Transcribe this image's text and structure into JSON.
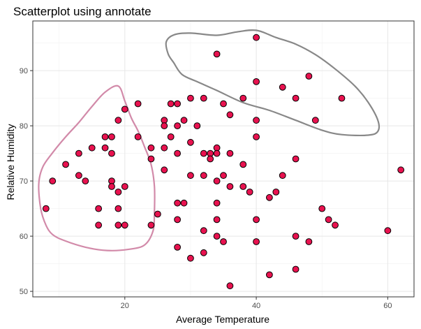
{
  "chart_data": {
    "type": "scatter",
    "title": "Scatterplot using annotate",
    "xlabel": "Average Temperature",
    "ylabel": "Relative Humidity",
    "xlim": [
      6,
      64
    ],
    "ylim": [
      49,
      99
    ],
    "xticks": [
      20,
      40,
      60
    ],
    "yticks": [
      50,
      60,
      70,
      80,
      90
    ],
    "xtick_labels": [
      "20",
      "40",
      "60"
    ],
    "ytick_labels": [
      "50",
      "60",
      "70",
      "80",
      "90"
    ],
    "grid": true,
    "point_fill": "#e8124f",
    "point_edge": "#000000",
    "points": [
      {
        "x": 8,
        "y": 65
      },
      {
        "x": 9,
        "y": 70
      },
      {
        "x": 11,
        "y": 73
      },
      {
        "x": 13,
        "y": 75
      },
      {
        "x": 13,
        "y": 71
      },
      {
        "x": 14,
        "y": 70
      },
      {
        "x": 15,
        "y": 76
      },
      {
        "x": 16,
        "y": 65
      },
      {
        "x": 16,
        "y": 62
      },
      {
        "x": 17,
        "y": 78
      },
      {
        "x": 17,
        "y": 76
      },
      {
        "x": 18,
        "y": 78
      },
      {
        "x": 18,
        "y": 75
      },
      {
        "x": 18,
        "y": 70
      },
      {
        "x": 18,
        "y": 69
      },
      {
        "x": 19,
        "y": 81
      },
      {
        "x": 19,
        "y": 68
      },
      {
        "x": 19,
        "y": 65
      },
      {
        "x": 19,
        "y": 62
      },
      {
        "x": 20,
        "y": 83
      },
      {
        "x": 20,
        "y": 69
      },
      {
        "x": 20,
        "y": 62
      },
      {
        "x": 22,
        "y": 84
      },
      {
        "x": 22,
        "y": 78
      },
      {
        "x": 24,
        "y": 76
      },
      {
        "x": 24,
        "y": 74
      },
      {
        "x": 24,
        "y": 62
      },
      {
        "x": 25,
        "y": 64
      },
      {
        "x": 26,
        "y": 81
      },
      {
        "x": 26,
        "y": 80
      },
      {
        "x": 26,
        "y": 76
      },
      {
        "x": 26,
        "y": 72
      },
      {
        "x": 27,
        "y": 84
      },
      {
        "x": 27,
        "y": 78
      },
      {
        "x": 28,
        "y": 84
      },
      {
        "x": 28,
        "y": 80
      },
      {
        "x": 28,
        "y": 75
      },
      {
        "x": 28,
        "y": 66
      },
      {
        "x": 28,
        "y": 63
      },
      {
        "x": 28,
        "y": 58
      },
      {
        "x": 29,
        "y": 81
      },
      {
        "x": 29,
        "y": 66
      },
      {
        "x": 30,
        "y": 85
      },
      {
        "x": 30,
        "y": 77
      },
      {
        "x": 30,
        "y": 71
      },
      {
        "x": 30,
        "y": 56
      },
      {
        "x": 31,
        "y": 80
      },
      {
        "x": 32,
        "y": 85
      },
      {
        "x": 32,
        "y": 75
      },
      {
        "x": 32,
        "y": 71
      },
      {
        "x": 32,
        "y": 61
      },
      {
        "x": 32,
        "y": 57
      },
      {
        "x": 33,
        "y": 75
      },
      {
        "x": 33,
        "y": 74
      },
      {
        "x": 34,
        "y": 93
      },
      {
        "x": 34,
        "y": 76
      },
      {
        "x": 34,
        "y": 75
      },
      {
        "x": 34,
        "y": 70
      },
      {
        "x": 34,
        "y": 66
      },
      {
        "x": 34,
        "y": 63
      },
      {
        "x": 34,
        "y": 60
      },
      {
        "x": 35,
        "y": 84
      },
      {
        "x": 35,
        "y": 71
      },
      {
        "x": 35,
        "y": 59
      },
      {
        "x": 36,
        "y": 82
      },
      {
        "x": 36,
        "y": 75
      },
      {
        "x": 36,
        "y": 69
      },
      {
        "x": 36,
        "y": 51
      },
      {
        "x": 38,
        "y": 85
      },
      {
        "x": 38,
        "y": 73
      },
      {
        "x": 38,
        "y": 69
      },
      {
        "x": 39,
        "y": 68
      },
      {
        "x": 40,
        "y": 96
      },
      {
        "x": 40,
        "y": 88
      },
      {
        "x": 40,
        "y": 81
      },
      {
        "x": 40,
        "y": 78
      },
      {
        "x": 40,
        "y": 63
      },
      {
        "x": 40,
        "y": 59
      },
      {
        "x": 42,
        "y": 67
      },
      {
        "x": 42,
        "y": 53
      },
      {
        "x": 43,
        "y": 68
      },
      {
        "x": 44,
        "y": 87
      },
      {
        "x": 44,
        "y": 71
      },
      {
        "x": 46,
        "y": 85
      },
      {
        "x": 46,
        "y": 74
      },
      {
        "x": 46,
        "y": 60
      },
      {
        "x": 46,
        "y": 54
      },
      {
        "x": 48,
        "y": 89
      },
      {
        "x": 48,
        "y": 59
      },
      {
        "x": 49,
        "y": 81
      },
      {
        "x": 50,
        "y": 65
      },
      {
        "x": 51,
        "y": 63
      },
      {
        "x": 52,
        "y": 62
      },
      {
        "x": 53,
        "y": 85
      },
      {
        "x": 60,
        "y": 61
      },
      {
        "x": 62,
        "y": 72
      }
    ],
    "annotations": [
      {
        "type": "path",
        "color": "#d28aa9",
        "points": [
          [
            6.9,
            69.4
          ],
          [
            7.5,
            72.5
          ],
          [
            9,
            75.1
          ],
          [
            11,
            78
          ],
          [
            13,
            80.6
          ],
          [
            15,
            83.5
          ],
          [
            17,
            86.1
          ],
          [
            19,
            87.2
          ],
          [
            20,
            84.5
          ],
          [
            21,
            81.4
          ],
          [
            22,
            79.1
          ],
          [
            23,
            76.2
          ],
          [
            24,
            73
          ],
          [
            24.5,
            69
          ],
          [
            24.5,
            64.5
          ],
          [
            24.3,
            61
          ],
          [
            23,
            58.4
          ],
          [
            20.5,
            57.6
          ],
          [
            17.3,
            57.4
          ],
          [
            14,
            58
          ],
          [
            10.8,
            59.2
          ],
          [
            9,
            60.3
          ],
          [
            8,
            62
          ],
          [
            7.2,
            65
          ],
          [
            6.9,
            69.4
          ]
        ]
      },
      {
        "type": "path",
        "color": "#888888",
        "points": [
          [
            34,
            96.4
          ],
          [
            37,
            97
          ],
          [
            40,
            97.3
          ],
          [
            43,
            96
          ],
          [
            46,
            94.8
          ],
          [
            49,
            92.9
          ],
          [
            52,
            90.3
          ],
          [
            55,
            87.2
          ],
          [
            57,
            84.3
          ],
          [
            58.5,
            81
          ],
          [
            58.5,
            79
          ],
          [
            57,
            78.3
          ],
          [
            53,
            78.4
          ],
          [
            50,
            79.2
          ],
          [
            46,
            81
          ],
          [
            42,
            82.8
          ],
          [
            38,
            84.2
          ],
          [
            34,
            86.4
          ],
          [
            31,
            88
          ],
          [
            28.7,
            89.3
          ],
          [
            27.4,
            91.5
          ],
          [
            26.6,
            93
          ],
          [
            26.3,
            95.2
          ],
          [
            27.5,
            96.5
          ],
          [
            30,
            96.8
          ],
          [
            34,
            96.4
          ]
        ]
      }
    ]
  }
}
